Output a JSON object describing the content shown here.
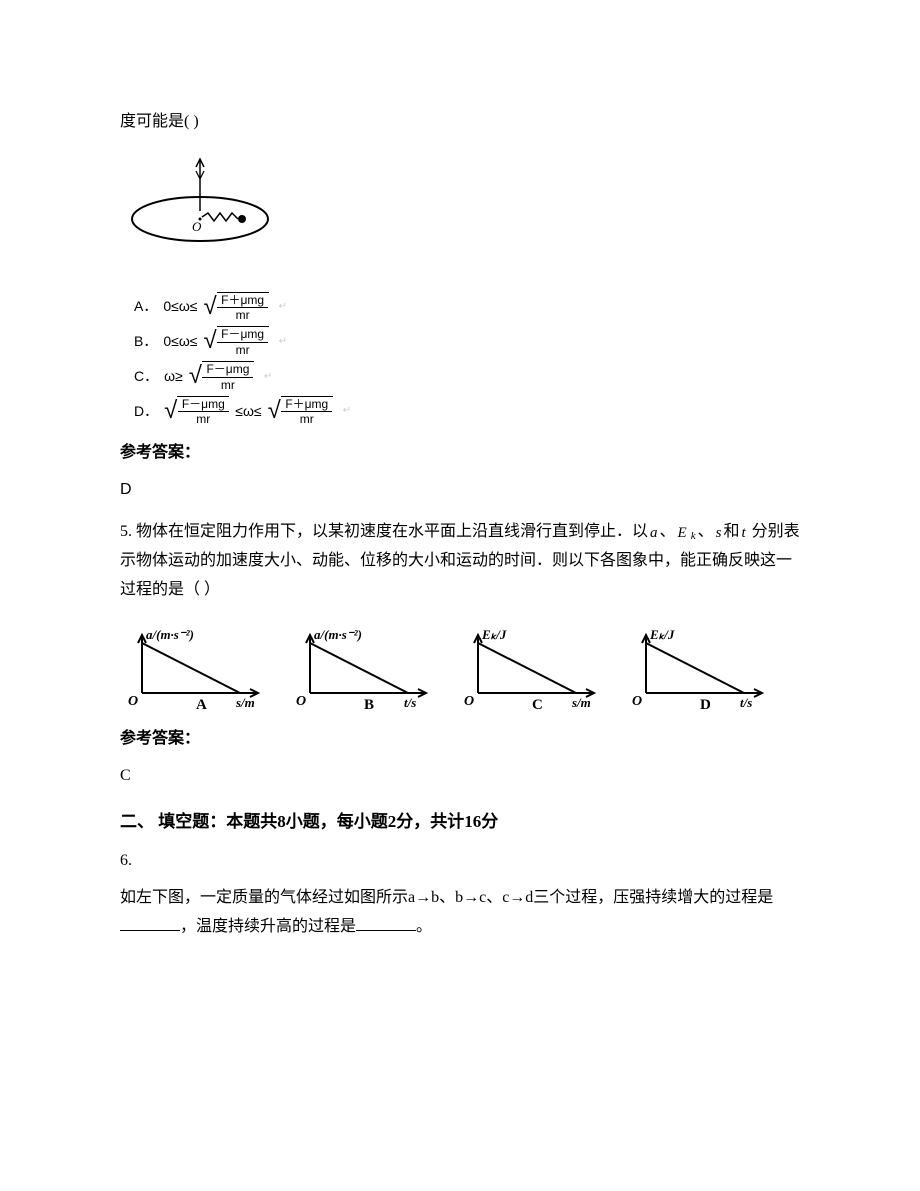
{
  "q4": {
    "stem_tail": "度可能是(    )",
    "disk_diagram": {
      "ellipse_rx": 68,
      "ellipse_ry": 22,
      "stroke": "#000000",
      "stroke_width": 2,
      "center_label": "O",
      "axis_top_arrow": true,
      "spring_coils": 5,
      "mass_radius": 3
    },
    "options": [
      {
        "letter": "A．",
        "prefix": "0≤ω≤",
        "num": "F＋μmg",
        "den": "mr"
      },
      {
        "letter": "B．",
        "prefix": "0≤ω≤",
        "num": "F－μmg",
        "den": "mr"
      },
      {
        "letter": "C．",
        "prefix": "ω≥",
        "num": "F－μmg",
        "den": "mr"
      },
      {
        "letter": "D．",
        "prefix_sqrt": {
          "num": "F－μmg",
          "den": "mr"
        },
        "middle": "≤ω≤",
        "suffix_sqrt": {
          "num": "F＋μmg",
          "den": "mr"
        }
      }
    ],
    "answer_label": "参考答案：",
    "answer": "D"
  },
  "q5": {
    "number": "5. ",
    "stem_part1": "物体在恒定阻力作用下，以某初速度在水平面上沿直线滑行直到停止．以",
    "var1": "a",
    "sep1": "、",
    "var2a": "E",
    "var2b": "k",
    "sep2": "、",
    "var3": "s",
    "sep3": "和",
    "var4": "t",
    "stem_part2": " 分别表示物体运动的加速度大小、动能、位移的大小和运动的时间．则以下各图象中，能正确反映这一过程的是（     ）",
    "graphs": {
      "width": 150,
      "height": 92,
      "axis_color": "#000000",
      "line_width": 2,
      "items": [
        {
          "ylabel": "a/(m·s⁻²)",
          "xlabel": "s/m",
          "shape": "line_down",
          "letter": "A"
        },
        {
          "ylabel": "a/(m·s⁻²)",
          "xlabel": "t/s",
          "shape": "line_down",
          "letter": "B"
        },
        {
          "ylabel": "Eₖ/J",
          "xlabel": "s/m",
          "shape": "line_down",
          "letter": "C"
        },
        {
          "ylabel": "Eₖ/J",
          "xlabel": "t/s",
          "shape": "line_down",
          "letter": "D"
        }
      ]
    },
    "answer_label": "参考答案：",
    "answer": "C"
  },
  "section2_heading": "二、 填空题：本题共8小题，每小题2分，共计16分",
  "q6": {
    "number": "6.",
    "stem_part1": "如左下图，一定质量的气体经过如图所示a→b、b→c、c→d三个过程，压强持续增大的过程是",
    "stem_part2": "，温度持续升高的过程是",
    "stem_part3": "。"
  }
}
